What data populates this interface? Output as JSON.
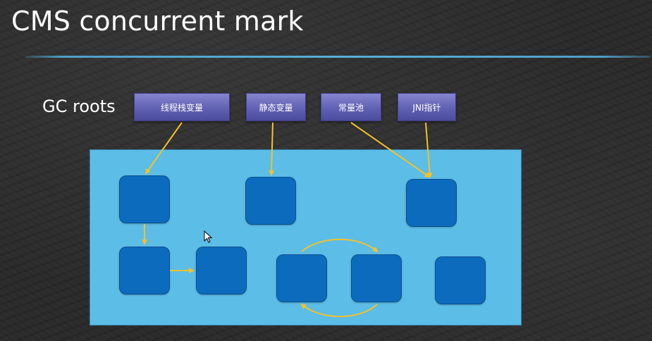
{
  "slide": {
    "title": "CMS concurrent mark",
    "gc_roots_label": "GC roots"
  },
  "roots": [
    {
      "label": "线程栈变量"
    },
    {
      "label": "静态变量"
    },
    {
      "label": "常量池"
    },
    {
      "label": "JNI指针"
    }
  ],
  "colors": {
    "background": "#2b2b2b",
    "rule": "#5aaed6",
    "root_box": "#6161b4",
    "heap": "#5cbde6",
    "node": "#0c6bbd",
    "arrow": "#f2c12e"
  },
  "icons": {
    "cursor": "mouse-pointer-icon"
  }
}
